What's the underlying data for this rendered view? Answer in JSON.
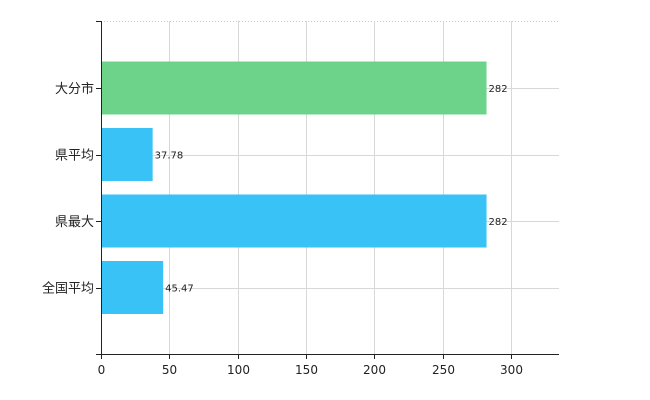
{
  "chart_data": {
    "type": "bar",
    "orientation": "horizontal",
    "categories": [
      "大分市",
      "県平均",
      "県最大",
      "全国平均"
    ],
    "values": [
      282,
      37.78,
      282,
      45.47
    ],
    "value_labels": [
      "282",
      "37.78",
      "282",
      "45.47"
    ],
    "bar_colors": [
      "#6dd38b",
      "#38c2f5",
      "#38c2f5",
      "#38c2f5"
    ],
    "x_ticks": [
      "0",
      "50",
      "100",
      "150",
      "200",
      "250",
      "300"
    ],
    "xlim": [
      0,
      335
    ],
    "grid": true,
    "title": "",
    "xlabel": "",
    "ylabel": ""
  }
}
